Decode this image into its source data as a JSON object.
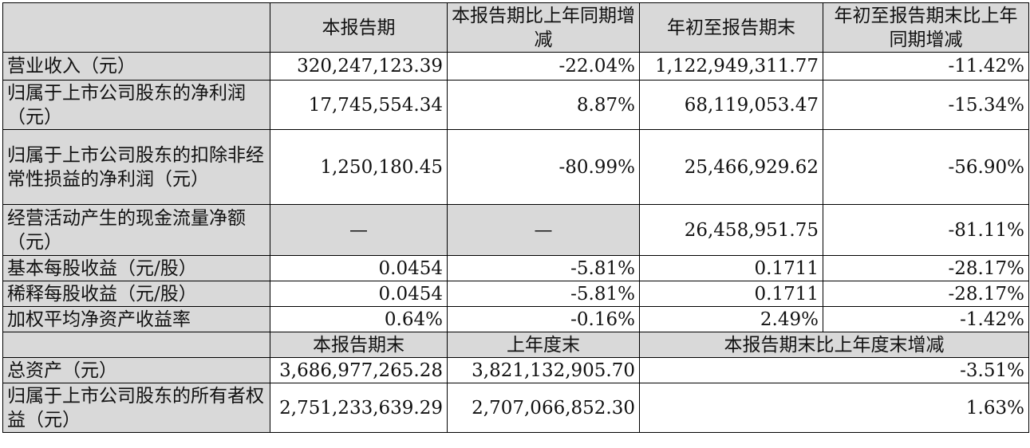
{
  "header": {
    "col1": "本报告期",
    "col2": "本报告期比上年同期增减",
    "col3": "年初至报告期末",
    "col4": "年初至报告期末比上年同期增减"
  },
  "rows": [
    {
      "label": "营业收入（元）",
      "v1": "320,247,123.39",
      "v2": "-22.04%",
      "v3": "1,122,949,311.77",
      "v4": "-11.42%"
    },
    {
      "label": "归属于上市公司股东的净利润（元）",
      "v1": "17,745,554.34",
      "v2": "8.87%",
      "v3": "68,119,053.47",
      "v4": "-15.34%"
    },
    {
      "label": "归属于上市公司股东的扣除非经常性损益的净利润（元）",
      "v1": "1,250,180.45",
      "v2": "-80.99%",
      "v3": "25,466,929.62",
      "v4": "-56.90%"
    },
    {
      "label": "经营活动产生的现金流量净额（元）",
      "v1": "—",
      "v2": "—",
      "v3": "26,458,951.75",
      "v4": "-81.11%"
    },
    {
      "label": "基本每股收益（元/股）",
      "v1": "0.0454",
      "v2": "-5.81%",
      "v3": "0.1711",
      "v4": "-28.17%"
    },
    {
      "label": "稀释每股收益（元/股）",
      "v1": "0.0454",
      "v2": "-5.81%",
      "v3": "0.1711",
      "v4": "-28.17%"
    },
    {
      "label": "加权平均净资产收益率",
      "v1": "0.64%",
      "v2": "-0.16%",
      "v3": "2.49%",
      "v4": "-1.42%"
    }
  ],
  "header2": {
    "col1": "本报告期末",
    "col2": "上年度末",
    "col3": "本报告期末比上年度末增减"
  },
  "rows2": [
    {
      "label": "总资产（元）",
      "v1": "3,686,977,265.28",
      "v2": "3,821,132,905.70",
      "v3": "-3.51%"
    },
    {
      "label": "归属于上市公司股东的所有者权益（元）",
      "v1": "2,751,233,639.29",
      "v2": "2,707,066,852.30",
      "v3": "1.63%"
    }
  ]
}
